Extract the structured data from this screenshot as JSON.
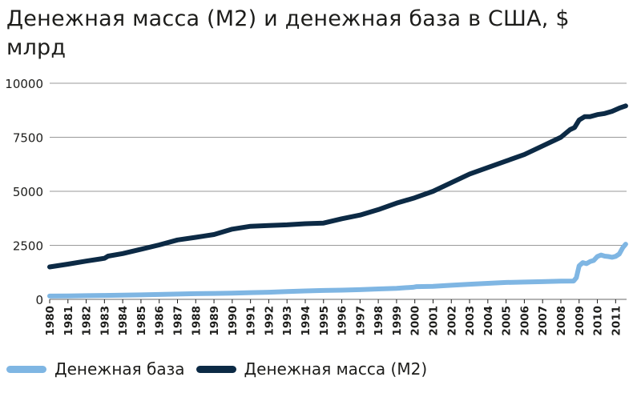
{
  "chart_data": {
    "type": "line",
    "title": "Денежная масса (М2) и денежная база в США, $ млрд",
    "xlabel": "",
    "ylabel": "",
    "ylim": [
      0,
      10000
    ],
    "yticks": [
      "0",
      "2500",
      "5000",
      "7500",
      "10000"
    ],
    "ytick_values": [
      0,
      2500,
      5000,
      7500,
      10000
    ],
    "xlim": [
      1980,
      2011.6
    ],
    "xticks": [
      "1980",
      "1981",
      "1982",
      "1983",
      "1984",
      "1985",
      "1986",
      "1987",
      "1988",
      "1989",
      "1990",
      "1991",
      "1992",
      "1993",
      "1994",
      "1995",
      "1996",
      "1997",
      "1998",
      "1999",
      "2000",
      "2001",
      "2002",
      "2003",
      "2004",
      "2005",
      "2006",
      "2007",
      "2008",
      "2009",
      "2010",
      "2011"
    ],
    "grid": true,
    "legend_position": "bottom-left",
    "colors": {
      "base": "#7fb6e3",
      "m2": "#0c2a45",
      "grid": "#9a9a9a"
    },
    "series": [
      {
        "name": "Денежная база",
        "key": "base",
        "x": [
          1980,
          1981,
          1982,
          1983,
          1984,
          1985,
          1986,
          1987,
          1988,
          1989,
          1990,
          1991,
          1992,
          1993,
          1994,
          1995,
          1996,
          1997,
          1998,
          1999,
          1999.9,
          2000.1,
          2001,
          2002,
          2003,
          2004,
          2005,
          2006,
          2007,
          2008,
          2008.7,
          2008.85,
          2009.0,
          2009.2,
          2009.4,
          2009.6,
          2009.8,
          2010.0,
          2010.2,
          2010.4,
          2010.6,
          2010.8,
          2011.0,
          2011.2,
          2011.4,
          2011.55
        ],
        "values": [
          150,
          160,
          170,
          182,
          193,
          208,
          225,
          245,
          262,
          275,
          290,
          310,
          330,
          360,
          390,
          410,
          425,
          450,
          480,
          510,
          560,
          590,
          600,
          650,
          700,
          740,
          780,
          800,
          820,
          840,
          850,
          1000,
          1550,
          1700,
          1650,
          1750,
          1800,
          1980,
          2050,
          2000,
          1980,
          1950,
          1990,
          2100,
          2400,
          2550
        ]
      },
      {
        "name": "Денежная масса (М2)",
        "key": "m2",
        "x": [
          1980,
          1981,
          1982,
          1983,
          1983.2,
          1984,
          1985,
          1986,
          1987,
          1988,
          1989,
          1990,
          1991,
          1992,
          1993,
          1994,
          1995,
          1996,
          1997,
          1998,
          1999,
          2000,
          2001,
          2002,
          2003,
          2004,
          2005,
          2006,
          2007,
          2008,
          2008.5,
          2008.75,
          2009.0,
          2009.3,
          2009.6,
          2010.0,
          2010.4,
          2010.8,
          2011.2,
          2011.55
        ],
        "values": [
          1500,
          1630,
          1770,
          1900,
          2000,
          2120,
          2320,
          2520,
          2750,
          2870,
          3000,
          3250,
          3380,
          3420,
          3450,
          3500,
          3530,
          3730,
          3900,
          4150,
          4450,
          4700,
          5000,
          5400,
          5800,
          6100,
          6400,
          6700,
          7100,
          7500,
          7850,
          7950,
          8300,
          8450,
          8450,
          8550,
          8600,
          8700,
          8850,
          8950
        ]
      }
    ]
  }
}
